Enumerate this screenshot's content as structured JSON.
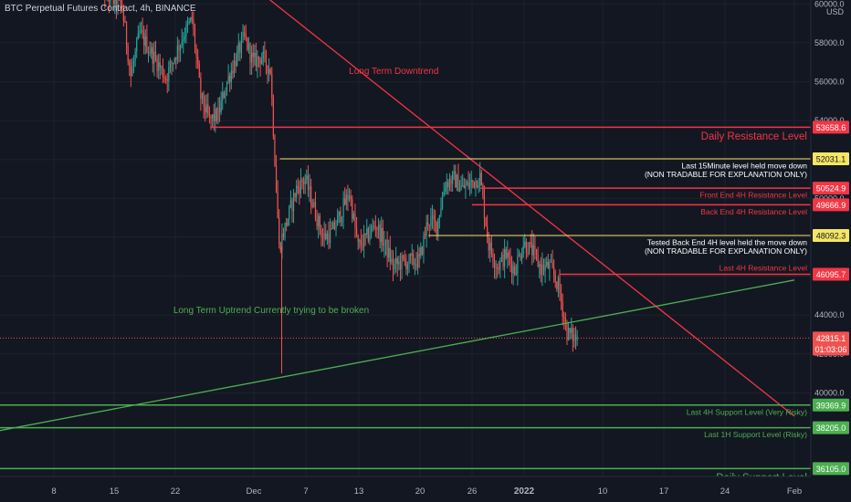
{
  "header": {
    "title": "BTC Perpetual Futures Contract, 4h, BINANCE",
    "currency": "USD"
  },
  "colors": {
    "background": "#131722",
    "up": "#26a69a",
    "down": "#ef5350",
    "resistance": "#f23645",
    "yellow": "#f5e663",
    "support": "#4caf50",
    "text": "#d1d4dc"
  },
  "chart_data": {
    "type": "candlestick",
    "title": "BTC Perpetual Futures Contract, 4h, BINANCE",
    "ylabel": "USD",
    "ylim": [
      35700,
      60200
    ],
    "y_ticks": [
      40000,
      42000,
      44000,
      46000,
      48000,
      50000,
      52000,
      54000,
      56000,
      58000,
      60000
    ],
    "x_ticks": [
      "8",
      "15",
      "22",
      "Dec",
      "7",
      "13",
      "20",
      "26",
      "2022",
      "10",
      "17",
      "24",
      "Feb"
    ],
    "price_path": [
      {
        "date": "2021-11-13",
        "price": 64000
      },
      {
        "date": "2021-11-14",
        "price": 60500
      },
      {
        "date": "2021-11-16",
        "price": 59800
      },
      {
        "date": "2021-11-17",
        "price": 56300
      },
      {
        "date": "2021-11-18",
        "price": 58500
      },
      {
        "date": "2021-11-20",
        "price": 57000
      },
      {
        "date": "2021-11-21",
        "price": 56200
      },
      {
        "date": "2021-11-23",
        "price": 58400
      },
      {
        "date": "2021-11-24",
        "price": 59200
      },
      {
        "date": "2021-11-25",
        "price": 55200
      },
      {
        "date": "2021-11-26",
        "price": 54000
      },
      {
        "date": "2021-11-27",
        "price": 54300
      },
      {
        "date": "2021-11-28",
        "price": 56000
      },
      {
        "date": "2021-11-30",
        "price": 58300
      },
      {
        "date": "2021-12-01",
        "price": 57000
      },
      {
        "date": "2021-12-02",
        "price": 57300
      },
      {
        "date": "2021-12-03",
        "price": 56600
      },
      {
        "date": "2021-12-04",
        "price": 47500
      },
      {
        "date": "2021-12-05",
        "price": 49000
      },
      {
        "date": "2021-12-06",
        "price": 50500
      },
      {
        "date": "2021-12-07",
        "price": 51000
      },
      {
        "date": "2021-12-08",
        "price": 49500
      },
      {
        "date": "2021-12-09",
        "price": 48000
      },
      {
        "date": "2021-12-10",
        "price": 48200
      },
      {
        "date": "2021-12-11",
        "price": 49200
      },
      {
        "date": "2021-12-12",
        "price": 50300
      },
      {
        "date": "2021-12-13",
        "price": 47500
      },
      {
        "date": "2021-12-14",
        "price": 48000
      },
      {
        "date": "2021-12-15",
        "price": 48700
      },
      {
        "date": "2021-12-16",
        "price": 47700
      },
      {
        "date": "2021-12-17",
        "price": 46500
      },
      {
        "date": "2021-12-18",
        "price": 46700
      },
      {
        "date": "2021-12-20",
        "price": 46800
      },
      {
        "date": "2021-12-21",
        "price": 48900
      },
      {
        "date": "2021-12-22",
        "price": 48600
      },
      {
        "date": "2021-12-23",
        "price": 50800
      },
      {
        "date": "2021-12-24",
        "price": 51000
      },
      {
        "date": "2021-12-25",
        "price": 50500
      },
      {
        "date": "2021-12-26",
        "price": 50800
      },
      {
        "date": "2021-12-27",
        "price": 51100
      },
      {
        "date": "2021-12-28",
        "price": 47600
      },
      {
        "date": "2021-12-29",
        "price": 46500
      },
      {
        "date": "2021-12-30",
        "price": 47100
      },
      {
        "date": "2021-12-31",
        "price": 46300
      },
      {
        "date": "2022-01-01",
        "price": 47700
      },
      {
        "date": "2022-01-02",
        "price": 47300
      },
      {
        "date": "2022-01-03",
        "price": 46400
      },
      {
        "date": "2022-01-04",
        "price": 46500
      },
      {
        "date": "2022-01-05",
        "price": 45500
      },
      {
        "date": "2022-01-06",
        "price": 43100
      },
      {
        "date": "2022-01-07",
        "price": 42800
      }
    ],
    "levels": [
      {
        "price": 53658.6,
        "label": "Daily Resistance Level",
        "color": "#f23645",
        "text_position": "below",
        "start_date": "2021-11-26"
      },
      {
        "price": 52031.1,
        "label": "Last 15Minute level held move down",
        "label2": "(NON TRADABLE FOR EXPLANATION ONLY)",
        "color": "#f5e663",
        "text_position": "below",
        "start_date": "2021-12-04"
      },
      {
        "price": 50524.9,
        "label": "Front End 4H Resistance Level",
        "color": "#f23645",
        "text_position": "below",
        "start_date": "2021-12-27"
      },
      {
        "price": 49666.9,
        "label": "Back End 4H Resistance Level",
        "color": "#f23645",
        "text_position": "below",
        "start_date": "2021-12-26"
      },
      {
        "price": 48092.3,
        "label": "Tested Back End 4H level held the move down",
        "label2": "(NON TRADABLE FOR EXPLANATION ONLY)",
        "color": "#f5e663",
        "text_position": "below",
        "start_date": "2021-12-21"
      },
      {
        "price": 46095.7,
        "label": "Last 4H Resistance Level",
        "color": "#f23645",
        "text_position": "above",
        "start_date": "2022-01-05"
      },
      {
        "price": 39369.9,
        "label": "Last 4H Support Level (Very Risky)",
        "color": "#4caf50",
        "text_position": "below"
      },
      {
        "price": 38205.0,
        "label": "Last 1H Support Level (Risky)",
        "color": "#4caf50",
        "text_position": "below"
      },
      {
        "price": 36105.0,
        "label": "Daily Support Level",
        "color": "#4caf50",
        "text_position": "below"
      }
    ],
    "trendlines": [
      {
        "label": "Long Term Downtrend",
        "color": "#f23645",
        "from": {
          "date": "2021-11-25",
          "price": 63000
        },
        "to": {
          "date": "2022-02-01",
          "price": 38800
        }
      },
      {
        "label": "Long Term Uptrend Currently trying to be broken",
        "color": "#4caf50",
        "from": {
          "date": "2021-11-01",
          "price": 38000
        },
        "to": {
          "date": "2022-02-01",
          "price": 45800
        }
      }
    ],
    "current_price": {
      "price": 42815.1,
      "countdown": "01:03:06"
    },
    "annotations": [
      {
        "text": "Long Term Downtrend",
        "color": "#f23645",
        "date": "2021-12-17",
        "price": 56400
      },
      {
        "text": "Long Term Uptrend Currently trying to be broken",
        "color": "#4caf50",
        "date": "2021-12-03",
        "price": 44100
      }
    ]
  }
}
